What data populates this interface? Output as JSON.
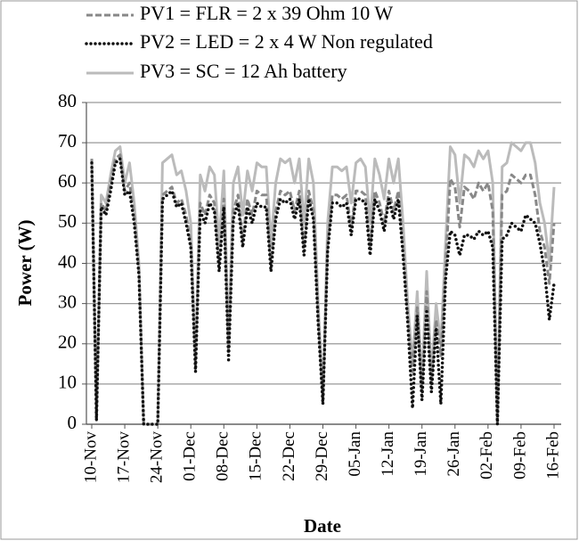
{
  "chart_data": {
    "type": "line",
    "xlabel": "Date",
    "ylabel": "Power (W)",
    "categories": [
      "10-Nov",
      null,
      null,
      null,
      null,
      null,
      null,
      "17-Nov",
      null,
      null,
      null,
      null,
      null,
      null,
      "24-Nov",
      null,
      null,
      null,
      null,
      null,
      null,
      "01-Dec",
      null,
      null,
      null,
      null,
      null,
      null,
      "08-Dec",
      null,
      null,
      null,
      null,
      null,
      null,
      "15-Dec",
      null,
      null,
      null,
      null,
      null,
      null,
      "22-Dec",
      null,
      null,
      null,
      null,
      null,
      null,
      "29-Dec",
      null,
      null,
      null,
      null,
      null,
      null,
      "05-Jan",
      null,
      null,
      null,
      null,
      null,
      null,
      "12-Jan",
      null,
      null,
      null,
      null,
      null,
      null,
      "19-Jan",
      null,
      null,
      null,
      null,
      null,
      null,
      "26-Jan",
      null,
      null,
      null,
      null,
      null,
      null,
      "02-Feb",
      null,
      null,
      null,
      null,
      null,
      null,
      "09-Feb",
      null,
      null,
      null,
      null,
      null,
      null,
      "16-Feb"
    ],
    "series": [
      {
        "name": "PV1 = FLR = 2 x 39 Ohm 10 W",
        "color": "#888888",
        "style": "dashed",
        "values": [
          66,
          1,
          55,
          53,
          60,
          66,
          67,
          58,
          60,
          52,
          38,
          0,
          0,
          0,
          0,
          57,
          58,
          59,
          55,
          56,
          52,
          45,
          14,
          55,
          52,
          57,
          55,
          40,
          56,
          18,
          53,
          57,
          46,
          56,
          52,
          58,
          57,
          57,
          40,
          53,
          58,
          57,
          58,
          53,
          58,
          44,
          58,
          53,
          27,
          6,
          45,
          57,
          57,
          56,
          57,
          49,
          58,
          58,
          57,
          44,
          58,
          55,
          50,
          58,
          53,
          58,
          44,
          27,
          13,
          29,
          8,
          33,
          10,
          26,
          17,
          39,
          61,
          59,
          49,
          59,
          58,
          56,
          60,
          58,
          60,
          53,
          0,
          57,
          58,
          62,
          61,
          60,
          62,
          62,
          57,
          48,
          44,
          35,
          50
        ]
      },
      {
        "name": "PV2 = LED = 2 x 4 W Non regulated",
        "color": "#111111",
        "style": "dotted",
        "values": [
          65,
          1,
          54,
          52,
          58,
          65,
          66,
          57,
          58,
          50,
          37,
          0,
          0,
          0,
          0,
          56,
          57,
          58,
          54,
          55,
          50,
          44,
          13,
          53,
          50,
          55,
          53,
          38,
          54,
          16,
          51,
          55,
          44,
          54,
          50,
          55,
          54,
          54,
          38,
          51,
          56,
          55,
          56,
          51,
          56,
          42,
          56,
          51,
          25,
          5,
          43,
          55,
          55,
          54,
          55,
          47,
          56,
          56,
          55,
          42,
          56,
          53,
          48,
          56,
          51,
          56,
          42,
          25,
          4,
          27,
          6,
          28,
          8,
          24,
          5,
          36,
          48,
          47,
          42,
          47,
          47,
          46,
          48,
          47,
          48,
          44,
          0,
          46,
          47,
          50,
          49,
          48,
          52,
          51,
          50,
          45,
          38,
          26,
          35
        ]
      },
      {
        "name": "PV3 = SC = 12 Ah battery",
        "color": "#bbbbbb",
        "style": "solid",
        "values": [
          66,
          2,
          57,
          55,
          62,
          68,
          69,
          60,
          65,
          55,
          40,
          0,
          0,
          0,
          0,
          65,
          66,
          67,
          62,
          63,
          58,
          50,
          15,
          62,
          58,
          64,
          62,
          45,
          63,
          20,
          60,
          64,
          52,
          63,
          58,
          65,
          64,
          64,
          45,
          60,
          66,
          65,
          66,
          60,
          66,
          50,
          66,
          60,
          30,
          6,
          50,
          64,
          64,
          63,
          64,
          55,
          65,
          66,
          64,
          50,
          66,
          62,
          56,
          66,
          60,
          66,
          50,
          30,
          15,
          33,
          10,
          38,
          12,
          30,
          20,
          45,
          69,
          67,
          55,
          67,
          66,
          64,
          68,
          66,
          68,
          60,
          0,
          64,
          65,
          70,
          69,
          68,
          70,
          70,
          65,
          55,
          50,
          40,
          59
        ]
      }
    ],
    "ylim": [
      0,
      80
    ],
    "yticks": [
      0,
      10,
      20,
      30,
      40,
      50,
      60,
      70,
      80
    ],
    "grid": true
  }
}
